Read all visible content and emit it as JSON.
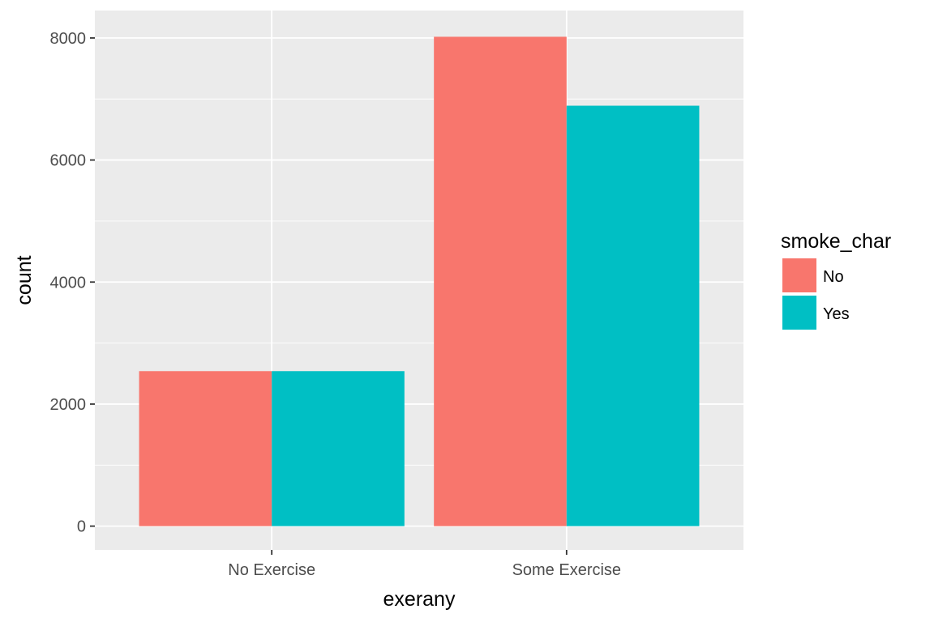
{
  "chart_data": {
    "type": "bar",
    "categories": [
      "No Exercise",
      "Some Exercise"
    ],
    "series": [
      {
        "name": "No",
        "values": [
          2540,
          8020
        ],
        "color": "#F8766D"
      },
      {
        "name": "Yes",
        "values": [
          2540,
          6890
        ],
        "color": "#00BFC4"
      }
    ],
    "xlabel": "exerany",
    "ylabel": "count",
    "ylim": [
      -390,
      8450
    ],
    "yticks": [
      0,
      2000,
      4000,
      6000,
      8000
    ],
    "ytick_labels": [
      "0",
      "2000",
      "4000",
      "6000",
      "8000"
    ],
    "grid": true,
    "legend": {
      "title": "smoke_char",
      "position": "right"
    },
    "panel_background": "#EBEBEB",
    "grid_color": "#FFFFFF"
  }
}
